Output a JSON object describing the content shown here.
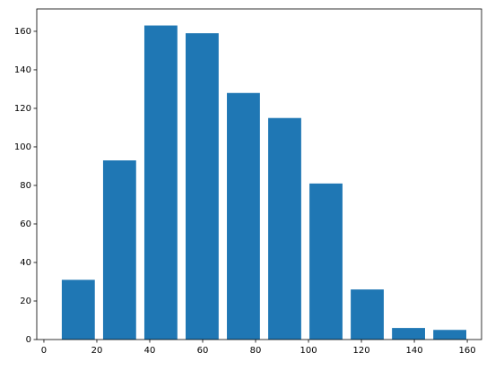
{
  "chart_data": {
    "type": "histogram",
    "bins": [
      5.2,
      20.8,
      36.4,
      52.0,
      67.6,
      83.2,
      98.8,
      114.4,
      130.0,
      145.6,
      161.2
    ],
    "values": [
      31,
      93,
      163,
      159,
      128,
      115,
      81,
      26,
      6,
      5
    ],
    "color": "#1f77b4",
    "xlim": [
      -2.7,
      165.4
    ],
    "xticks": [
      0,
      20,
      40,
      60,
      80,
      100,
      120,
      140,
      160
    ],
    "ylim": [
      0,
      171.6
    ],
    "yticks": [
      0,
      20,
      40,
      60,
      80,
      100,
      120,
      140,
      160
    ],
    "grid": false
  }
}
